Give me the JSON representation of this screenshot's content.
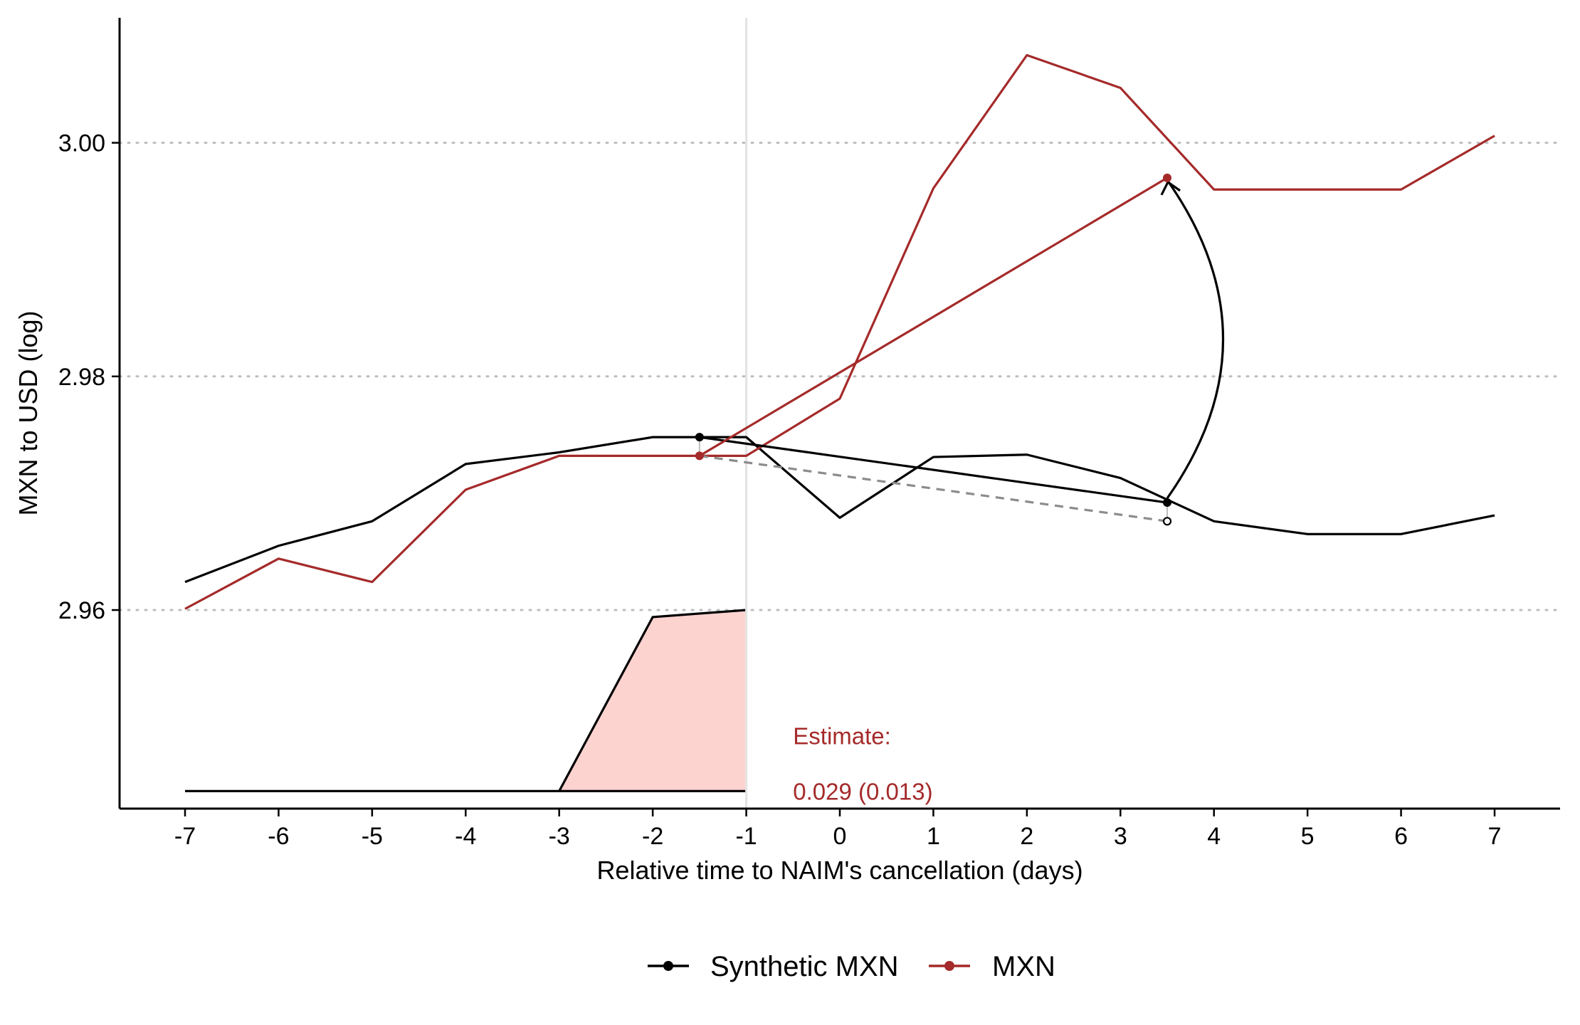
{
  "chart_data": {
    "type": "line",
    "title": "",
    "xlabel": "Relative time to NAIM's cancellation (days)",
    "ylabel": "MXN to USD (log)",
    "xlim": [
      -7.7,
      7.7
    ],
    "ylim": [
      2.943,
      3.0107
    ],
    "x_ticks": [
      -7,
      -6,
      -5,
      -4,
      -3,
      -2,
      -1,
      0,
      1,
      2,
      3,
      4,
      5,
      6,
      7
    ],
    "x_tick_labels": [
      "-7",
      "-6",
      "-5",
      "-4",
      "-3",
      "-2",
      "-1",
      "0",
      "1",
      "2",
      "3",
      "4",
      "5",
      "6",
      "7"
    ],
    "y_ticks": [
      2.96,
      2.98,
      3.0
    ],
    "y_tick_labels": [
      "2.96",
      "2.98",
      "3.00"
    ],
    "grid": "horizontal dotted",
    "treatment_line_x": -1,
    "x": [
      -7,
      -6,
      -5,
      -4,
      -3,
      -2,
      -1,
      0,
      1,
      2,
      3,
      4,
      5,
      6,
      7
    ],
    "series": [
      {
        "name": "Synthetic MXN",
        "color": "#000000",
        "values": [
          2.9624,
          2.9655,
          2.9676,
          2.9725,
          2.9735,
          2.9748,
          2.9748,
          2.9679,
          2.9731,
          2.9733,
          2.9713,
          2.9676,
          2.9665,
          2.9665,
          2.9681
        ]
      },
      {
        "name": "MXN",
        "color": "#A52A2A",
        "values": [
          2.9601,
          2.9644,
          2.9624,
          2.9703,
          2.9732,
          2.9732,
          2.9732,
          2.9781,
          2.9961,
          3.0075,
          3.0047,
          2.996,
          2.996,
          2.996,
          3.0006
        ]
      }
    ],
    "pre_period_means": {
      "x": -1.5,
      "synthetic": 2.9748,
      "mxn": 2.9732
    },
    "post_period_means": {
      "x": 3.5,
      "synthetic": 2.9692,
      "mxn": 2.997,
      "counterfactual": 2.9676
    },
    "weight_ribbon": {
      "x": [
        -3,
        -2,
        -1
      ],
      "y": [
        2.9445,
        2.9594,
        2.96
      ],
      "baseline_x": [
        -7,
        -1
      ],
      "baseline_y": 2.9445,
      "fill": "#FDD3D0"
    },
    "annotation": {
      "label": "Estimate:",
      "value": "0.029 (0.013)",
      "color": "#A52A2A"
    },
    "legend_position": "bottom"
  }
}
